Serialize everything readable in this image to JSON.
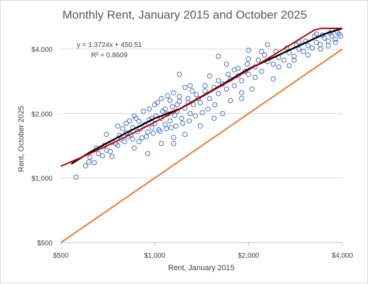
{
  "chart_data": {
    "type": "scatter",
    "title": "Monthly Rent, January 2015 and October 2025",
    "xlabel": "Rent, January 2015",
    "ylabel": "Rent, October 2025",
    "x_scale": "log",
    "y_scale": "log",
    "xlim": [
      500,
      4000
    ],
    "ylim": [
      500,
      5000
    ],
    "x_ticks": [
      500,
      1000,
      2000,
      4000
    ],
    "x_tick_labels": [
      "$500",
      "$1,000",
      "$2,000",
      "$4,000"
    ],
    "y_ticks": [
      500,
      1000,
      2000,
      4000
    ],
    "y_tick_labels": [
      "$500",
      "$1,000",
      "$2,000",
      "$4,000"
    ],
    "grid": "horizontal",
    "annotations": {
      "equation": "y = 1.3724x + 450.51",
      "r_squared": "R² = 0.8609"
    },
    "lines": [
      {
        "kind": "trend",
        "color": "#000000",
        "points": [
          [
            540,
            1165
          ],
          [
            620,
            1320
          ],
          [
            800,
            1610
          ],
          [
            1000,
            1900
          ],
          [
            1200,
            2100
          ],
          [
            1500,
            2520
          ],
          [
            2000,
            3230
          ],
          [
            2800,
            4050
          ],
          [
            3500,
            4700
          ],
          [
            4000,
            5300
          ]
        ]
      },
      {
        "kind": "regression",
        "color": "#c00000",
        "slope": 1.3724,
        "intercept": 450.51
      },
      {
        "kind": "equal",
        "color": "#ed7d31",
        "slope": 1,
        "intercept": 0
      }
    ],
    "series": [
      {
        "marker_color": "#4472c4",
        "points": [
          [
            560,
            1010
          ],
          [
            600,
            1140
          ],
          [
            615,
            1190
          ],
          [
            640,
            1180
          ],
          [
            660,
            1300
          ],
          [
            680,
            1270
          ],
          [
            700,
            1350
          ],
          [
            720,
            1330
          ],
          [
            730,
            1470
          ],
          [
            760,
            1420
          ],
          [
            780,
            1520
          ],
          [
            800,
            1480
          ],
          [
            820,
            1560
          ],
          [
            840,
            1600
          ],
          [
            860,
            1380
          ],
          [
            880,
            1650
          ],
          [
            900,
            1700
          ],
          [
            910,
            1540
          ],
          [
            930,
            1780
          ],
          [
            950,
            1640
          ],
          [
            960,
            1870
          ],
          [
            980,
            1720
          ],
          [
            1000,
            1800
          ],
          [
            1010,
            1950
          ],
          [
            1030,
            1680
          ],
          [
            1050,
            1900
          ],
          [
            1060,
            2050
          ],
          [
            1080,
            1780
          ],
          [
            1100,
            1990
          ],
          [
            1120,
            1850
          ],
          [
            1140,
            2150
          ],
          [
            1160,
            1960
          ],
          [
            1180,
            2050
          ],
          [
            1200,
            2280
          ],
          [
            1220,
            1900
          ],
          [
            1250,
            2120
          ],
          [
            1280,
            2350
          ],
          [
            1300,
            2000
          ],
          [
            1330,
            2200
          ],
          [
            1360,
            2450
          ],
          [
            1400,
            2250
          ],
          [
            1450,
            2550
          ],
          [
            1500,
            2350
          ],
          [
            1550,
            2650
          ],
          [
            1600,
            2480
          ],
          [
            1650,
            2750
          ],
          [
            1700,
            2600
          ],
          [
            1750,
            2900
          ],
          [
            1800,
            2700
          ],
          [
            1850,
            3000
          ],
          [
            1900,
            2850
          ],
          [
            1950,
            3150
          ],
          [
            2000,
            3050
          ],
          [
            2100,
            3300
          ],
          [
            2200,
            3150
          ],
          [
            2300,
            3500
          ],
          [
            2400,
            3400
          ],
          [
            2500,
            3650
          ],
          [
            2600,
            3550
          ],
          [
            2700,
            3850
          ],
          [
            2800,
            3700
          ],
          [
            2900,
            4000
          ],
          [
            3000,
            3900
          ],
          [
            3100,
            4150
          ],
          [
            3200,
            4050
          ],
          [
            3300,
            4300
          ],
          [
            3400,
            4200
          ],
          [
            3500,
            4500
          ],
          [
            3600,
            4350
          ],
          [
            3700,
            4600
          ],
          [
            3800,
            4450
          ],
          [
            3900,
            4700
          ],
          [
            830,
            1850
          ],
          [
            870,
            1900
          ],
          [
            920,
            2050
          ],
          [
            1000,
            2200
          ],
          [
            1050,
            2350
          ],
          [
            1100,
            2420
          ],
          [
            1150,
            2500
          ],
          [
            1250,
            2650
          ],
          [
            750,
            1450
          ],
          [
            790,
            1700
          ],
          [
            850,
            1520
          ],
          [
            890,
            1480
          ],
          [
            940,
            1560
          ],
          [
            990,
            1620
          ],
          [
            1040,
            1650
          ],
          [
            1090,
            1700
          ],
          [
            1130,
            1720
          ],
          [
            1170,
            1750
          ],
          [
            1230,
            1800
          ],
          [
            1290,
            1850
          ],
          [
            1350,
            1950
          ],
          [
            1420,
            2020
          ],
          [
            1480,
            2100
          ],
          [
            1560,
            2200
          ],
          [
            700,
            1600
          ],
          [
            760,
            1750
          ],
          [
            810,
            1800
          ],
          [
            860,
            1950
          ],
          [
            960,
            2100
          ],
          [
            1020,
            2250
          ],
          [
            1120,
            2300
          ],
          [
            1200,
            2400
          ],
          [
            1320,
            2550
          ],
          [
            1450,
            2700
          ],
          [
            1600,
            2850
          ],
          [
            1720,
            3050
          ],
          [
            1850,
            3250
          ],
          [
            1980,
            3400
          ],
          [
            2150,
            3550
          ],
          [
            2250,
            3750
          ],
          [
            2450,
            3900
          ],
          [
            2650,
            4050
          ],
          [
            2850,
            4200
          ],
          [
            3050,
            4350
          ],
          [
            3250,
            4600
          ],
          [
            3450,
            4650
          ],
          [
            3650,
            4750
          ],
          [
            3850,
            4800
          ],
          [
            1500,
            3000
          ],
          [
            1700,
            3400
          ],
          [
            1800,
            3200
          ],
          [
            2000,
            3600
          ],
          [
            2200,
            3900
          ],
          [
            2700,
            3350
          ],
          [
            2400,
            2900
          ],
          [
            1900,
            2500
          ],
          [
            1300,
            2700
          ],
          [
            1200,
            3050
          ],
          [
            1600,
            3700
          ],
          [
            2000,
            3950
          ],
          [
            2300,
            4200
          ],
          [
            2900,
            4300
          ],
          [
            3300,
            4700
          ],
          [
            3700,
            4900
          ],
          [
            1150,
            1550
          ],
          [
            1250,
            1600
          ],
          [
            1400,
            1750
          ],
          [
            1550,
            1900
          ],
          [
            1650,
            2000
          ],
          [
            1750,
            2300
          ],
          [
            1900,
            2350
          ],
          [
            2050,
            2600
          ],
          [
            950,
            1300
          ],
          [
            1050,
            1450
          ],
          [
            1150,
            1450
          ],
          [
            980,
            1900
          ],
          [
            1080,
            2100
          ],
          [
            1180,
            2200
          ],
          [
            1280,
            2250
          ],
          [
            1380,
            2350
          ],
          [
            620,
            1250
          ],
          [
            650,
            1380
          ],
          [
            690,
            1420
          ],
          [
            730,
            1260
          ],
          [
            770,
            1580
          ],
          [
            810,
            1620
          ],
          [
            850,
            1720
          ],
          [
            890,
            1840
          ],
          [
            2100,
            2950
          ],
          [
            2500,
            3300
          ],
          [
            2800,
            3550
          ],
          [
            3100,
            3750
          ],
          [
            3400,
            4000
          ],
          [
            3600,
            4150
          ],
          [
            3800,
            4300
          ],
          [
            3950,
            4600
          ]
        ]
      }
    ]
  }
}
